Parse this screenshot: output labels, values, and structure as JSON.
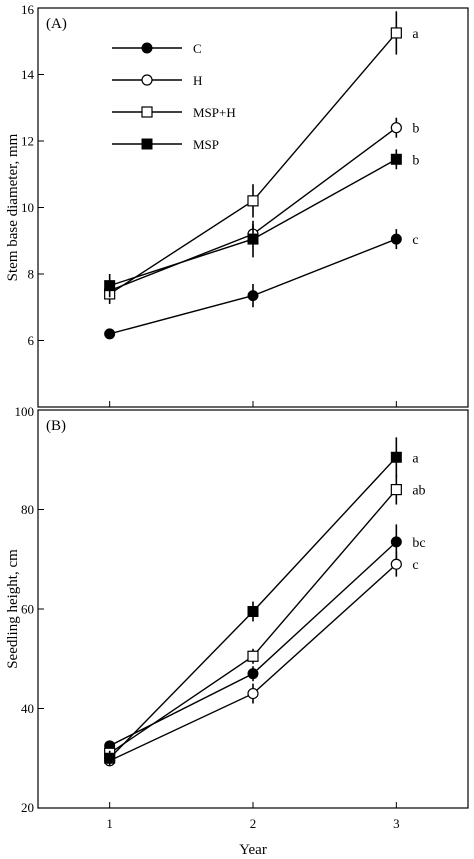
{
  "chart_data": [
    {
      "type": "line",
      "panel_label": "(A)",
      "ylabel": "Stem base diameter, mm",
      "xlabel": "",
      "x": [
        1,
        2,
        3
      ],
      "ylim": [
        4,
        16
      ],
      "yticks": [
        6,
        8,
        10,
        12,
        14,
        16
      ],
      "ytick_labels": [
        "6",
        "8",
        "10",
        "12",
        "14",
        "16"
      ],
      "xticks": [],
      "xtick_labels": [],
      "grid": false,
      "legend": {
        "placement": "top-left"
      },
      "series": [
        {
          "name": "C",
          "marker": "circle-filled",
          "values": [
            6.2,
            7.35,
            9.05
          ],
          "errors": [
            0.15,
            0.35,
            0.3
          ],
          "end_label": "c"
        },
        {
          "name": "H",
          "marker": "circle-open",
          "values": [
            7.5,
            9.2,
            12.4
          ],
          "errors": [
            0.25,
            0.3,
            0.3
          ],
          "end_label": "b"
        },
        {
          "name": "MSP+H",
          "marker": "square-open",
          "values": [
            7.4,
            10.2,
            15.25
          ],
          "errors": [
            0.3,
            0.5,
            0.65
          ],
          "end_label": "a"
        },
        {
          "name": "MSP",
          "marker": "square-filled",
          "values": [
            7.65,
            9.05,
            11.45
          ],
          "errors": [
            0.35,
            0.55,
            0.3
          ],
          "end_label": "b"
        }
      ]
    },
    {
      "type": "line",
      "panel_label": "(B)",
      "ylabel": "Seedling height, cm",
      "xlabel": "Year",
      "x": [
        1,
        2,
        3
      ],
      "ylim": [
        20,
        100
      ],
      "yticks": [
        20,
        40,
        60,
        80,
        100
      ],
      "ytick_labels": [
        "20",
        "40",
        "60",
        "80",
        "100"
      ],
      "xticks": [
        1,
        2,
        3
      ],
      "xtick_labels": [
        "1",
        "2",
        "3"
      ],
      "grid": false,
      "series": [
        {
          "name": "C",
          "marker": "circle-filled",
          "values": [
            32.5,
            47,
            73.5
          ],
          "errors": [
            1.0,
            1.5,
            3.5
          ],
          "end_label": "bc"
        },
        {
          "name": "H",
          "marker": "circle-open",
          "values": [
            29.5,
            43,
            69
          ],
          "errors": [
            1.0,
            2.0,
            2.5
          ],
          "end_label": "c"
        },
        {
          "name": "MSP+H",
          "marker": "square-open",
          "values": [
            31,
            50.5,
            84
          ],
          "errors": [
            1.5,
            1.5,
            3.0
          ],
          "end_label": "ab"
        },
        {
          "name": "MSP",
          "marker": "square-filled",
          "values": [
            30,
            59.5,
            90.5
          ],
          "errors": [
            1.5,
            2.0,
            4.0
          ],
          "end_label": "a"
        }
      ]
    }
  ]
}
